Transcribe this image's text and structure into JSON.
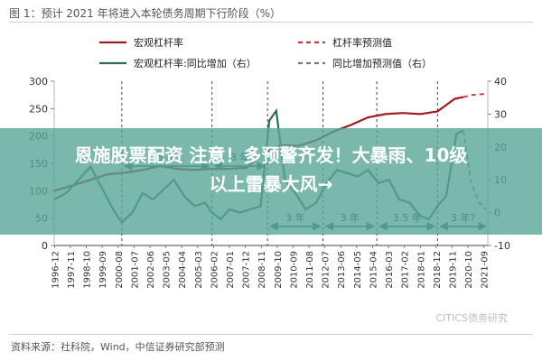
{
  "figure": {
    "title": "图 1：预计 2021 年将进入本轮债务周期下行阶段（%）",
    "source": "资料来源：社科院，Wind，中信证券研究部预测",
    "watermark": "CITICS债务研究"
  },
  "overlay": {
    "headline_line1": "恩施股票配资 注意！多预警齐发！大暴雨、10级",
    "headline_line2": "以上雷暴大风→"
  },
  "colors": {
    "leverage": "#9c1c1f",
    "growth": "#2f6b57",
    "annotation": "#2f6b57",
    "overlay": "#58a696"
  },
  "chart_data": {
    "type": "line",
    "legend": {
      "placement": "top",
      "entries": [
        "宏观杠杆率",
        "杠杆率预测值",
        "宏观杠杆率:同比增加（右）",
        "同比增加预测值（右）"
      ]
    },
    "x": {
      "tick_labels": [
        "1996-12",
        "1997-11",
        "1998-10",
        "1999-09",
        "2000-08",
        "2001-07",
        "2002-06",
        "2003-05",
        "2004-04",
        "2005-03",
        "2006-02",
        "2007-01",
        "2007-12",
        "2008-11",
        "2009-10",
        "2010-09",
        "2011-08",
        "2012-07",
        "2013-06",
        "2014-05",
        "2015-04",
        "2016-03",
        "2017-02",
        "2018-01",
        "2018-12",
        "2019-11",
        "2020-10",
        "2021-09"
      ],
      "range": [
        1996.9,
        2021.9
      ],
      "tick_start": 1996.917,
      "tick_step": 0.917
    },
    "y_left": {
      "ticks": [
        0,
        50,
        100,
        150,
        200,
        250,
        300
      ],
      "ylim": [
        0,
        300
      ]
    },
    "y_right": {
      "ticks": [
        -10,
        0,
        10,
        20,
        30,
        40
      ],
      "ylim": [
        -10,
        40
      ]
    },
    "series": [
      {
        "name": "宏观杠杆率",
        "axis": "left",
        "style": "solid",
        "color": "#9c1c1f",
        "points": [
          [
            1996.9,
            100
          ],
          [
            1998,
            110
          ],
          [
            1999,
            120
          ],
          [
            2000,
            130
          ],
          [
            2001,
            133
          ],
          [
            2002,
            138
          ],
          [
            2003,
            145
          ],
          [
            2004,
            140
          ],
          [
            2005,
            138
          ],
          [
            2006,
            140
          ],
          [
            2007,
            140
          ],
          [
            2008,
            142
          ],
          [
            2009,
            170
          ],
          [
            2010,
            183
          ],
          [
            2011,
            182
          ],
          [
            2012,
            192
          ],
          [
            2013,
            208
          ],
          [
            2014,
            220
          ],
          [
            2015,
            234
          ],
          [
            2016,
            240
          ],
          [
            2017,
            242
          ],
          [
            2018,
            240
          ],
          [
            2019,
            245
          ],
          [
            2020,
            268
          ],
          [
            2020.5,
            271
          ]
        ]
      },
      {
        "name": "杠杆率预测值",
        "axis": "left",
        "style": "dashed",
        "color": "#c43a3e",
        "points": [
          [
            2020.5,
            271
          ],
          [
            2021,
            275
          ],
          [
            2021.8,
            277
          ]
        ]
      },
      {
        "name": "宏观杠杆率:同比增加",
        "axis": "right",
        "style": "solid",
        "color": "#2f6b57",
        "points": [
          [
            1996.9,
            4
          ],
          [
            1997.6,
            6
          ],
          [
            1998.3,
            10
          ],
          [
            1999,
            14
          ],
          [
            1999.6,
            8
          ],
          [
            2000.3,
            1
          ],
          [
            2000.8,
            -3
          ],
          [
            2001.4,
            0
          ],
          [
            2002,
            6
          ],
          [
            2002.6,
            4
          ],
          [
            2003.2,
            7
          ],
          [
            2003.8,
            10
          ],
          [
            2004.4,
            5
          ],
          [
            2005,
            2
          ],
          [
            2005.6,
            3
          ],
          [
            2006,
            0
          ],
          [
            2006.5,
            -2
          ],
          [
            2007,
            1
          ],
          [
            2007.6,
            0
          ],
          [
            2008.2,
            1
          ],
          [
            2008.8,
            2
          ],
          [
            2009.3,
            28
          ],
          [
            2009.7,
            31
          ],
          [
            2010.2,
            10
          ],
          [
            2010.8,
            6
          ],
          [
            2011.4,
            1
          ],
          [
            2012,
            3
          ],
          [
            2012.6,
            9
          ],
          [
            2013.2,
            13
          ],
          [
            2013.8,
            12
          ],
          [
            2014.4,
            11
          ],
          [
            2015,
            13
          ],
          [
            2015.6,
            9
          ],
          [
            2016.2,
            10
          ],
          [
            2016.8,
            4
          ],
          [
            2017.4,
            3
          ],
          [
            2018,
            -1
          ],
          [
            2018.5,
            -2
          ],
          [
            2019,
            2
          ],
          [
            2019.5,
            5
          ],
          [
            2020.1,
            24
          ],
          [
            2020.5,
            25
          ]
        ]
      },
      {
        "name": "同比增加预测值",
        "axis": "right",
        "style": "dashed",
        "color": "#7a7a7a",
        "points": [
          [
            2020.5,
            25
          ],
          [
            2020.9,
            10
          ],
          [
            2021.4,
            3
          ],
          [
            2021.8,
            1
          ]
        ]
      }
    ],
    "annotations": [
      {
        "text": "5 年",
        "x_from": 2000.8,
        "x_to": 2006.0,
        "axis": "left",
        "y": 145
      },
      {
        "text": "3 年",
        "x_from": 2006.0,
        "x_to": 2009.2,
        "axis": "left",
        "y": 145
      },
      {
        "text": "3 年",
        "x_from": 2009.2,
        "x_to": 2012.4,
        "axis": "left",
        "y": 35
      },
      {
        "text": "3 年",
        "x_from": 2012.4,
        "x_to": 2015.5,
        "axis": "left",
        "y": 35
      },
      {
        "text": "3.5 年",
        "x_from": 2015.5,
        "x_to": 2019.0,
        "axis": "left",
        "y": 35
      },
      {
        "text": "3 年?",
        "x_from": 2019.0,
        "x_to": 2022.0,
        "axis": "left",
        "y": 35
      }
    ],
    "vlines": [
      2000.8,
      2006.0,
      2009.2,
      2012.4,
      2015.5,
      2019.0
    ]
  }
}
